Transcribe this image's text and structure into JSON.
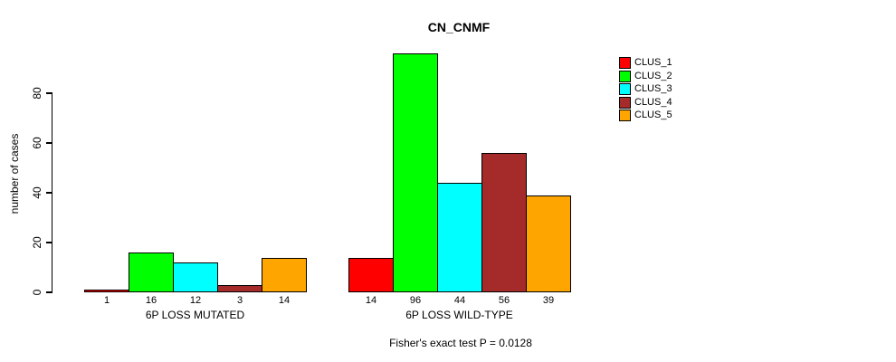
{
  "chart_data": {
    "type": "bar",
    "title": "CN_CNMF",
    "ylabel": "number of cases",
    "xlabel": "",
    "yticks": [
      0,
      20,
      40,
      60,
      80
    ],
    "ylim": [
      0,
      96
    ],
    "grid": false,
    "legend_position": "top-right",
    "categories": [
      "6P LOSS MUTATED",
      "6P LOSS WILD-TYPE"
    ],
    "series": [
      {
        "name": "CLUS_1",
        "color": "#FF0000",
        "values": [
          1,
          14
        ]
      },
      {
        "name": "CLUS_2",
        "color": "#00FF00",
        "values": [
          16,
          96
        ]
      },
      {
        "name": "CLUS_3",
        "color": "#00FFFF",
        "values": [
          12,
          44
        ]
      },
      {
        "name": "CLUS_4",
        "color": "#A52A2A",
        "values": [
          3,
          56
        ]
      },
      {
        "name": "CLUS_5",
        "color": "#FFA500",
        "values": [
          14,
          39
        ]
      }
    ],
    "annotation": "Fisher's exact test P = 0.0128",
    "axis_color": "#000000",
    "background_color": "#FFFFFF"
  }
}
